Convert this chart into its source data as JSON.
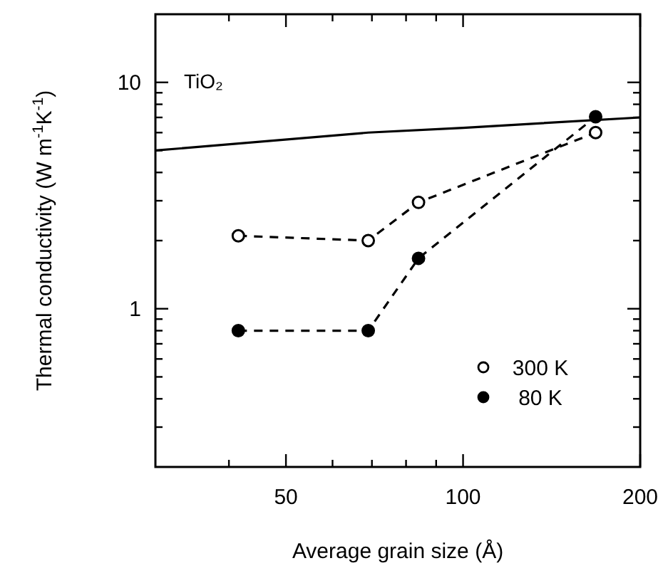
{
  "chart_data": {
    "type": "line",
    "xlabel": "Average grain size (Å)",
    "ylabel": "Thermal conductivity (W m$^{-1}$K$^{-1}$)",
    "log": "xy",
    "xlim": [
      30,
      200
    ],
    "ylim": [
      0.2,
      20
    ],
    "xticks": [
      {
        "value": 40,
        "label": null
      },
      50,
      {
        "value": 60,
        "label": null
      },
      {
        "value": 70,
        "label": null
      },
      {
        "value": 80,
        "label": null
      },
      {
        "value": 90,
        "label": null
      },
      100,
      200
    ],
    "yticks": [
      {
        "value": 0.3,
        "label": null
      },
      {
        "value": 0.4,
        "label": null
      },
      {
        "value": 0.5,
        "label": null
      },
      {
        "value": 0.6,
        "label": null
      },
      {
        "value": 0.7,
        "label": null
      },
      {
        "value": 0.8,
        "label": null
      },
      {
        "value": 0.9,
        "label": null
      },
      1,
      {
        "value": 2,
        "label": null
      },
      {
        "value": 3,
        "label": null
      },
      {
        "value": 4,
        "label": null
      },
      {
        "value": 5,
        "label": null
      },
      {
        "value": 6,
        "label": null
      },
      {
        "value": 7,
        "label": null
      },
      {
        "value": 8,
        "label": null
      },
      {
        "value": 9,
        "label": null
      },
      10
    ],
    "annotations": [
      "TiO₂"
    ],
    "legend": "bottom right",
    "grid": false,
    "series": [
      {
        "color": "#000000",
        "x": [
          30,
          69,
          100,
          200
        ],
        "values": [
          5.0,
          6.0,
          6.3,
          7.0
        ],
        "marker": "none",
        "line_style": "solid"
      },
      {
        "name": "300 K",
        "color": "#000000",
        "x": [
          41.5,
          69,
          84,
          168
        ],
        "values": [
          2.1,
          2.0,
          2.95,
          6.0
        ],
        "marker": "circle",
        "line_style": "dashed"
      },
      {
        "name": "80 K",
        "color": "#000000",
        "x": [
          41.5,
          69,
          84,
          168
        ],
        "values": [
          0.8,
          0.8,
          1.67,
          7.05
        ],
        "marker": "circle",
        "line_style": "dashed"
      }
    ]
  }
}
